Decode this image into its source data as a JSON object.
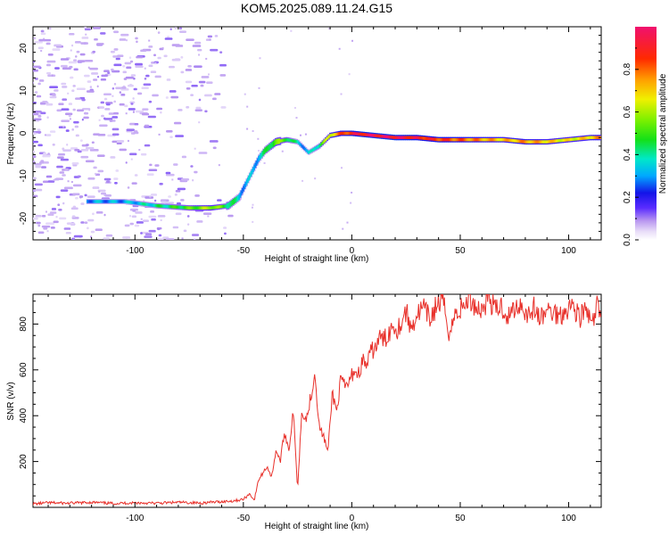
{
  "title": "KOM5.2025.089.11.24.G15",
  "colors": {
    "band_trace": "#3a10d0",
    "scatter_light": "#cdb4f2",
    "scatter_mid": "#b088e8",
    "snr_line": "#e8302a",
    "axis": "#000000"
  },
  "chart_data": [
    {
      "type": "heatmap",
      "xlabel": "Height of straight line (km)",
      "ylabel": "Frequency (Hz)",
      "xlim": [
        -147,
        115
      ],
      "ylim": [
        -25,
        25
      ],
      "xticks": [
        -100,
        -50,
        0,
        50,
        100
      ],
      "yticks": [
        -20,
        -10,
        0,
        10,
        20
      ],
      "colorbar": {
        "label": "Normalized spectral amplitude",
        "range": [
          0,
          1
        ],
        "ticks": [
          0.0,
          0.2,
          0.4,
          0.6,
          0.8
        ],
        "colormap": [
          "#ffffff",
          "#c8b4f0",
          "#6030ff",
          "#1010e0",
          "#00b0ff",
          "#00e8c0",
          "#20e000",
          "#c0ff00",
          "#ffe000",
          "#ff8000",
          "#ff1000",
          "#f0106e"
        ]
      },
      "dominant_frequency": {
        "x": [
          -122,
          -105,
          -90,
          -75,
          -65,
          -57,
          -52,
          -49,
          -46,
          -43,
          -40,
          -35,
          -30,
          -25,
          -20,
          -15,
          -10,
          -5,
          0,
          10,
          20,
          30,
          40,
          50,
          60,
          70,
          80,
          90,
          100,
          110,
          115
        ],
        "y": [
          -16,
          -16,
          -17,
          -17.5,
          -17.5,
          -17,
          -15,
          -12,
          -9,
          -6,
          -4,
          -2,
          -1.5,
          -2,
          -4.5,
          -3,
          -0.5,
          0,
          0,
          -0.5,
          -1,
          -1,
          -1.5,
          -1.5,
          -1.5,
          -1.5,
          -2,
          -2,
          -1.5,
          -1,
          -1
        ],
        "amplitude": [
          0.3,
          0.3,
          0.4,
          0.5,
          0.6,
          0.45,
          0.35,
          0.3,
          0.3,
          0.35,
          0.4,
          0.55,
          0.5,
          0.35,
          0.3,
          0.45,
          0.65,
          0.8,
          0.9,
          0.95,
          0.95,
          0.9,
          0.85,
          0.8,
          0.75,
          0.7,
          0.75,
          0.7,
          0.65,
          0.7,
          0.75
        ]
      }
    },
    {
      "type": "line",
      "xlabel": "Height of straight line (km)",
      "ylabel": "SNR (v/v)",
      "xlim": [
        -147,
        115
      ],
      "ylim": [
        0,
        930
      ],
      "xticks": [
        -100,
        -50,
        0,
        50,
        100
      ],
      "yticks": [
        200,
        400,
        600,
        800
      ],
      "series": [
        {
          "x": [
            -147,
            -140,
            -130,
            -120,
            -110,
            -100,
            -90,
            -80,
            -70,
            -60,
            -55,
            -50,
            -47,
            -45,
            -43,
            -41,
            -39,
            -37,
            -35,
            -33,
            -31,
            -29,
            -27,
            -25,
            -23,
            -21,
            -19,
            -17,
            -15,
            -13,
            -11,
            -9,
            -7,
            -5,
            -3,
            -1,
            1,
            3,
            5,
            7,
            9,
            11,
            13,
            15,
            17,
            19,
            21,
            23,
            25,
            27,
            30,
            33,
            36,
            39,
            42,
            45,
            48,
            51,
            54,
            57,
            60,
            63,
            66,
            69,
            72,
            75,
            78,
            81,
            84,
            87,
            90,
            93,
            96,
            99,
            102,
            105,
            108,
            111,
            113,
            115
          ],
          "values": [
            15,
            20,
            18,
            22,
            17,
            20,
            18,
            22,
            19,
            25,
            28,
            35,
            60,
            30,
            120,
            150,
            180,
            130,
            250,
            200,
            330,
            250,
            420,
            80,
            430,
            380,
            480,
            590,
            350,
            310,
            240,
            500,
            420,
            560,
            520,
            550,
            600,
            580,
            640,
            620,
            680,
            700,
            740,
            730,
            760,
            800,
            780,
            810,
            860,
            780,
            840,
            870,
            820,
            880,
            900,
            760,
            850,
            870,
            910,
            880,
            860,
            920,
            860,
            880,
            830,
            870,
            890,
            840,
            870,
            820,
            860,
            850,
            840,
            870,
            880,
            830,
            860,
            790,
            880,
            820
          ]
        }
      ]
    }
  ]
}
